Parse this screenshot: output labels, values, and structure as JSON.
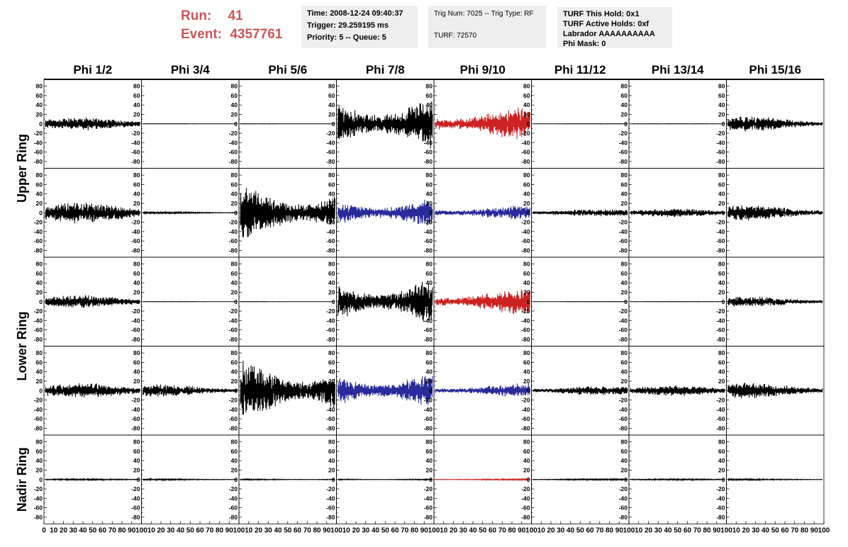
{
  "header": {
    "run_label": "Run:",
    "run_value": "41",
    "event_label": "Event:",
    "event_value": "4357761",
    "time": "Time: 2008-12-24 09:40:37",
    "trigger": "Trigger: 29.259195 ms",
    "priority": "Priority: 5 -- Queue: 5",
    "trig_num": "Trig Num: 7025 -- Trig Type: RF",
    "turf": "TURF: 72570",
    "turf_this_hold": "TURF This Hold: 0x1",
    "turf_active_holds": "TURF Active Holds: 0xf",
    "labrador": "Labrador AAAAAAAAAA",
    "phi_mask": "Phi Mask: 0"
  },
  "colors": {
    "header_red": "#cc5555",
    "box_bg": "#eeeeee",
    "trace_black": "#000000",
    "trace_red": "#cc2222",
    "trace_blue": "#2a2a9a"
  },
  "chart_data": {
    "type": "line",
    "columns": [
      "Phi 1/2",
      "Phi 3/4",
      "Phi 5/6",
      "Phi 7/8",
      "Phi 9/10",
      "Phi 11/12",
      "Phi 13/14",
      "Phi 15/16"
    ],
    "ring_labels": [
      "Upper Ring",
      "Lower Ring",
      "Nadir Ring"
    ],
    "ring_row_groups": [
      [
        0,
        1
      ],
      [
        2,
        3
      ],
      [
        4
      ]
    ],
    "xlim": [
      0,
      100
    ],
    "ylim": [
      -90,
      90
    ],
    "y_ticks": [
      -80,
      -60,
      -40,
      -20,
      0,
      20,
      40,
      60,
      80
    ],
    "x_tick_labels": [
      "0",
      "10",
      "20",
      "30",
      "40",
      "50",
      "60",
      "70",
      "80",
      "90",
      "100"
    ],
    "rows": [
      {
        "amplitudes": [
          12,
          0.3,
          0.3,
          55,
          30,
          0.3,
          0.3,
          14
        ],
        "colors": [
          "#000000",
          "#000000",
          "#000000",
          "#000000",
          "#cc2222",
          "#000000",
          "#000000",
          "#000000"
        ]
      },
      {
        "amplitudes": [
          20,
          2,
          55,
          32,
          14,
          7,
          8,
          15
        ],
        "colors": [
          "#000000",
          "#000000",
          "#000000",
          "#2a2a9a",
          "#2a2a9a",
          "#000000",
          "#000000",
          "#000000"
        ]
      },
      {
        "amplitudes": [
          12,
          0.3,
          0.3,
          48,
          25,
          0.3,
          0.3,
          10
        ],
        "colors": [
          "#000000",
          "#000000",
          "#000000",
          "#000000",
          "#cc2222",
          "#000000",
          "#000000",
          "#000000"
        ]
      },
      {
        "amplitudes": [
          14,
          12,
          58,
          38,
          13,
          9,
          10,
          15
        ],
        "colors": [
          "#000000",
          "#000000",
          "#000000",
          "#2a2a9a",
          "#2a2a9a",
          "#000000",
          "#000000",
          "#000000"
        ]
      },
      {
        "amplitudes": [
          1.5,
          1.5,
          1.5,
          1.5,
          1.5,
          1.5,
          1.5,
          1.5
        ],
        "colors": [
          "#000000",
          "#000000",
          "#000000",
          "#000000",
          "#cc2222",
          "#000000",
          "#000000",
          "#000000"
        ]
      }
    ]
  }
}
